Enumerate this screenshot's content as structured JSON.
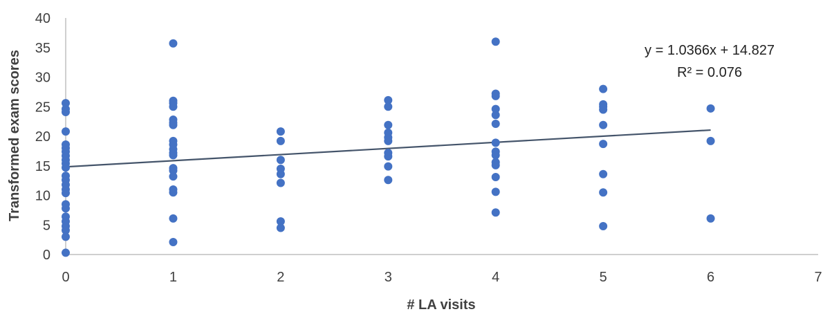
{
  "chart_data": {
    "type": "scatter",
    "title": "",
    "xlabel": "# LA visits",
    "ylabel": "Transformed exam scores",
    "xlim": [
      0,
      7
    ],
    "ylim": [
      0,
      40
    ],
    "x_ticks": [
      0,
      1,
      2,
      3,
      4,
      5,
      6,
      7
    ],
    "y_ticks": [
      0,
      5,
      10,
      15,
      20,
      25,
      30,
      35,
      40
    ],
    "grid": false,
    "legend": "none",
    "marker_color": "#4472C4",
    "trendline_color": "#44546A",
    "axis_color": "#BFBFBF",
    "trendline": {
      "slope": 1.0366,
      "intercept": 14.827,
      "x_range": [
        0,
        6
      ],
      "equation": "y = 1.0366x + 14.827",
      "r_squared": "R² = 0.076"
    },
    "series": [
      {
        "points": [
          [
            0,
            25.6
          ],
          [
            0,
            24.6
          ],
          [
            0,
            24.1
          ],
          [
            0,
            20.8
          ],
          [
            0,
            18.6
          ],
          [
            0,
            18.0
          ],
          [
            0,
            17.4
          ],
          [
            0,
            16.7
          ],
          [
            0,
            16.0
          ],
          [
            0,
            15.4
          ],
          [
            0,
            14.7
          ],
          [
            0,
            13.3
          ],
          [
            0,
            12.6
          ],
          [
            0,
            11.8
          ],
          [
            0,
            11.0
          ],
          [
            0,
            10.4
          ],
          [
            0,
            8.5
          ],
          [
            0,
            7.8
          ],
          [
            0,
            6.4
          ],
          [
            0,
            5.6
          ],
          [
            0,
            4.8
          ],
          [
            0,
            4.1
          ],
          [
            0,
            3.0
          ],
          [
            0,
            0.3
          ],
          [
            1,
            35.7
          ],
          [
            1,
            26.0
          ],
          [
            1,
            25.6
          ],
          [
            1,
            25.0
          ],
          [
            1,
            22.8
          ],
          [
            1,
            22.3
          ],
          [
            1,
            21.9
          ],
          [
            1,
            19.2
          ],
          [
            1,
            18.6
          ],
          [
            1,
            17.8
          ],
          [
            1,
            17.2
          ],
          [
            1,
            16.8
          ],
          [
            1,
            14.6
          ],
          [
            1,
            14.2
          ],
          [
            1,
            13.2
          ],
          [
            1,
            11.0
          ],
          [
            1,
            10.5
          ],
          [
            1,
            6.1
          ],
          [
            1,
            2.1
          ],
          [
            2,
            20.8
          ],
          [
            2,
            19.2
          ],
          [
            2,
            16.0
          ],
          [
            2,
            14.5
          ],
          [
            2,
            13.6
          ],
          [
            2,
            12.1
          ],
          [
            2,
            5.6
          ],
          [
            2,
            4.5
          ],
          [
            3,
            26.1
          ],
          [
            3,
            25.0
          ],
          [
            3,
            21.9
          ],
          [
            3,
            20.6
          ],
          [
            3,
            19.8
          ],
          [
            3,
            19.2
          ],
          [
            3,
            17.2
          ],
          [
            3,
            16.6
          ],
          [
            3,
            14.9
          ],
          [
            3,
            12.6
          ],
          [
            4,
            36.0
          ],
          [
            4,
            27.2
          ],
          [
            4,
            26.8
          ],
          [
            4,
            24.6
          ],
          [
            4,
            23.6
          ],
          [
            4,
            22.1
          ],
          [
            4,
            18.9
          ],
          [
            4,
            17.4
          ],
          [
            4,
            16.8
          ],
          [
            4,
            15.6
          ],
          [
            4,
            15.1
          ],
          [
            4,
            13.1
          ],
          [
            4,
            10.6
          ],
          [
            4,
            7.1
          ],
          [
            5,
            28.0
          ],
          [
            5,
            25.4
          ],
          [
            5,
            25.0
          ],
          [
            5,
            24.5
          ],
          [
            5,
            21.9
          ],
          [
            5,
            18.7
          ],
          [
            5,
            13.6
          ],
          [
            5,
            10.5
          ],
          [
            5,
            4.8
          ],
          [
            6,
            24.7
          ],
          [
            6,
            19.2
          ],
          [
            6,
            6.1
          ]
        ]
      }
    ]
  }
}
